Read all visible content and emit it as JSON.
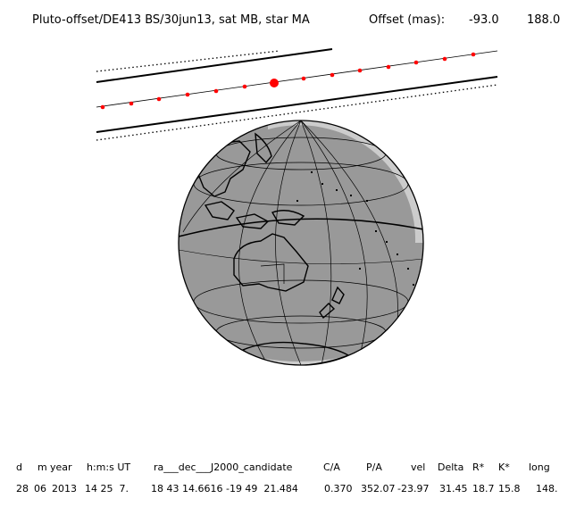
{
  "header": {
    "title": "Pluto-offset/DE413 BS/30jun13, sat MB, star MA",
    "offset_label": "Offset (mas):",
    "offset_x": "-93.0",
    "offset_y": "188.0"
  },
  "table": {
    "headers": [
      "d",
      "m",
      "year",
      "h:m:s UT",
      "ra___dec___J2000_candidate",
      "C/A",
      "P/A",
      "vel",
      "Delta",
      "R*",
      "K*",
      "long"
    ],
    "values": [
      "28",
      "06",
      "2013",
      "14 25  7.",
      "18 43 14.6616 -19 49  21.484",
      "0.370",
      "352.07",
      "-23.97",
      "31.45",
      "18.7",
      "15.8",
      "148."
    ]
  },
  "colors": {
    "path_dots": "#ff0000",
    "globe_ocean": "#999999",
    "globe_day": "#cccccc",
    "lines": "#000000"
  },
  "icons": {
    "globe": "earth-globe-icon",
    "occultation_point": "red-dot-icon"
  }
}
